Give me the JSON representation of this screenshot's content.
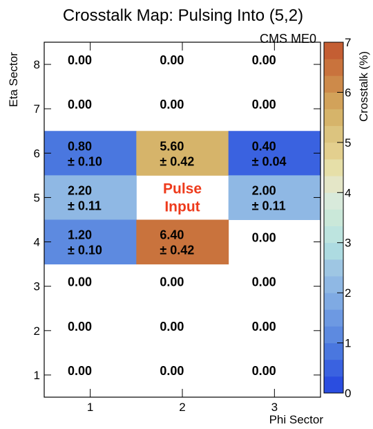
{
  "chart_data": {
    "type": "heatmap",
    "title": "Crosstalk Map: Pulsing Into (5,2)",
    "subtitle": "CMS ME0",
    "xlabel": "Phi Sector",
    "ylabel": "Eta Sector",
    "colorbar_label": "Crosstalk (%)",
    "x_ticks": [
      "1",
      "2",
      "3"
    ],
    "y_ticks": [
      "1",
      "2",
      "3",
      "4",
      "5",
      "6",
      "7",
      "8"
    ],
    "xlim": [
      0.5,
      3.5
    ],
    "ylim": [
      0.5,
      8.5
    ],
    "zlim": [
      0,
      7
    ],
    "colorbar_ticks": [
      "0",
      "1",
      "2",
      "3",
      "4",
      "5",
      "6",
      "7"
    ],
    "pulse_label": [
      "Pulse",
      "Input"
    ],
    "pulse_cell": {
      "phi": 2,
      "eta": 5
    },
    "cells": [
      {
        "phi": 1,
        "eta": 8,
        "value": "0.00",
        "error": null,
        "z": 0
      },
      {
        "phi": 2,
        "eta": 8,
        "value": "0.00",
        "error": null,
        "z": 0
      },
      {
        "phi": 3,
        "eta": 8,
        "value": "0.00",
        "error": null,
        "z": 0
      },
      {
        "phi": 1,
        "eta": 7,
        "value": "0.00",
        "error": null,
        "z": 0
      },
      {
        "phi": 2,
        "eta": 7,
        "value": "0.00",
        "error": null,
        "z": 0
      },
      {
        "phi": 3,
        "eta": 7,
        "value": "0.00",
        "error": null,
        "z": 0
      },
      {
        "phi": 1,
        "eta": 6,
        "value": "0.80",
        "error": "± 0.10",
        "z": 0.8
      },
      {
        "phi": 2,
        "eta": 6,
        "value": "5.60",
        "error": "± 0.42",
        "z": 5.6
      },
      {
        "phi": 3,
        "eta": 6,
        "value": "0.40",
        "error": "± 0.04",
        "z": 0.4
      },
      {
        "phi": 1,
        "eta": 5,
        "value": "2.20",
        "error": "± 0.11",
        "z": 2.2
      },
      {
        "phi": 3,
        "eta": 5,
        "value": "2.00",
        "error": "± 0.11",
        "z": 2.0
      },
      {
        "phi": 1,
        "eta": 4,
        "value": "1.20",
        "error": "± 0.10",
        "z": 1.2
      },
      {
        "phi": 2,
        "eta": 4,
        "value": "6.40",
        "error": "± 0.42",
        "z": 6.4
      },
      {
        "phi": 3,
        "eta": 4,
        "value": "0.00",
        "error": null,
        "z": 0
      },
      {
        "phi": 1,
        "eta": 3,
        "value": "0.00",
        "error": null,
        "z": 0
      },
      {
        "phi": 2,
        "eta": 3,
        "value": "0.00",
        "error": null,
        "z": 0
      },
      {
        "phi": 3,
        "eta": 3,
        "value": "0.00",
        "error": null,
        "z": 0
      },
      {
        "phi": 1,
        "eta": 2,
        "value": "0.00",
        "error": null,
        "z": 0
      },
      {
        "phi": 2,
        "eta": 2,
        "value": "0.00",
        "error": null,
        "z": 0
      },
      {
        "phi": 3,
        "eta": 2,
        "value": "0.00",
        "error": null,
        "z": 0
      },
      {
        "phi": 1,
        "eta": 1,
        "value": "0.00",
        "error": null,
        "z": 0
      },
      {
        "phi": 2,
        "eta": 1,
        "value": "0.00",
        "error": null,
        "z": 0
      },
      {
        "phi": 3,
        "eta": 1,
        "value": "0.00",
        "error": null,
        "z": 0
      }
    ],
    "palette": [
      "#2a4de0",
      "#3a62e0",
      "#4a77df",
      "#5d8ae0",
      "#6d99e2",
      "#7faae3",
      "#8fb8e4",
      "#9ec6e3",
      "#addbe1",
      "#bde4df",
      "#cae8d9",
      "#d8eadb",
      "#e4e6c7",
      "#e6dfa8",
      "#e3cf8e",
      "#dcc47f",
      "#d6b46a",
      "#d2a25a",
      "#cd8a4a",
      "#c9733d",
      "#c45e33"
    ]
  }
}
